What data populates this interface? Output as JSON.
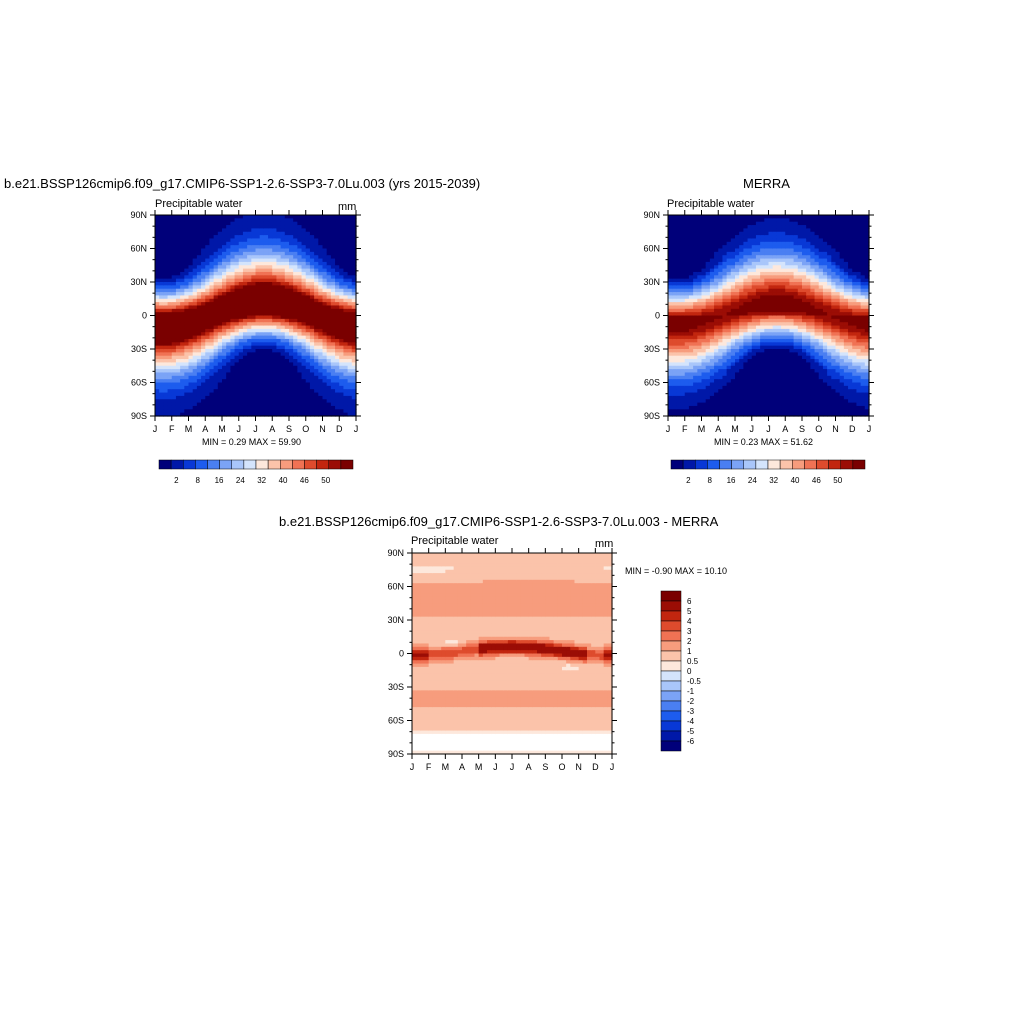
{
  "panels": [
    {
      "title": "b.e21.BSSP126cmip6.f09_g17.CMIP6-SSP1-2.6-SSP3-7.0Lu.003 (yrs 2015-2039)",
      "subtitle": "Precipitable water",
      "units": "mm",
      "stats": "MIN =   0.29 MAX =  59.90"
    },
    {
      "title": "MERRA",
      "subtitle": "Precipitable water",
      "units": "",
      "stats": "MIN =   0.23 MAX =  51.62"
    },
    {
      "title": "b.e21.BSSP126cmip6.f09_g17.CMIP6-SSP1-2.6-SSP3-7.0Lu.003 - MERRA",
      "subtitle": "Precipitable water",
      "units": "mm",
      "stats": "MIN =  -0.90 MAX =  10.10"
    }
  ],
  "chart_data": [
    {
      "type": "heatmap",
      "title": "b.e21.BSSP126cmip6.f09_g17.CMIP6-SSP1-2.6-SSP3-7.0Lu.003 (yrs 2015-2039)",
      "subtitle": "Precipitable water",
      "units": "mm",
      "x_ticks": [
        "J",
        "F",
        "M",
        "A",
        "M",
        "J",
        "J",
        "A",
        "S",
        "O",
        "N",
        "D",
        "J"
      ],
      "y_ticks": [
        "90N",
        "60N",
        "30N",
        "0",
        "30S",
        "60S",
        "90S"
      ],
      "lat_range": [
        -90,
        90
      ],
      "min": 0.29,
      "max": 59.9,
      "colorbar_labels": [
        "2",
        "8",
        "16",
        "24",
        "32",
        "40",
        "46",
        "50"
      ],
      "field": {
        "eq_max": 57,
        "pole_min": 1,
        "itcz_lat_jan": -6,
        "itcz_lat_jul": 9
      }
    },
    {
      "type": "heatmap",
      "title": "MERRA",
      "subtitle": "Precipitable water",
      "x_ticks": [
        "J",
        "F",
        "M",
        "A",
        "M",
        "J",
        "J",
        "A",
        "S",
        "O",
        "N",
        "D",
        "J"
      ],
      "y_ticks": [
        "90N",
        "60N",
        "30N",
        "0",
        "30S",
        "60S",
        "90S"
      ],
      "lat_range": [
        -90,
        90
      ],
      "min": 0.23,
      "max": 51.62,
      "colorbar_labels": [
        "2",
        "8",
        "16",
        "24",
        "32",
        "40",
        "46",
        "50"
      ],
      "field": {
        "eq_max": 50,
        "pole_min": 0.5,
        "itcz_lat_jan": -5,
        "itcz_lat_jul": 8
      }
    },
    {
      "type": "heatmap",
      "title": "b.e21.BSSP126cmip6.f09_g17.CMIP6-SSP1-2.6-SSP3-7.0Lu.003 - MERRA",
      "subtitle": "Precipitable water",
      "units": "mm",
      "x_ticks": [
        "J",
        "F",
        "M",
        "A",
        "M",
        "J",
        "J",
        "A",
        "S",
        "O",
        "N",
        "D",
        "J"
      ],
      "y_ticks": [
        "90N",
        "60N",
        "30N",
        "0",
        "30S",
        "60S",
        "90S"
      ],
      "lat_range": [
        -90,
        90
      ],
      "min": -0.9,
      "max": 10.1,
      "colorbar_labels": [
        "6",
        "5",
        "4",
        "3",
        "2",
        "1",
        "0.5",
        "0",
        "-0.5",
        "-1",
        "-2",
        "-3",
        "-4",
        "-5",
        "-6"
      ]
    }
  ],
  "colors": {
    "abs_levels": [
      "#00007a",
      "#0018a8",
      "#0838d6",
      "#1d5cee",
      "#4a7ff2",
      "#7ba3f6",
      "#a9c6fa",
      "#d4e4fc",
      "#fde8dc",
      "#fbc3aa",
      "#f79c7d",
      "#f07254",
      "#de4b2d",
      "#c2260f",
      "#9b0d05",
      "#7a0000"
    ],
    "diff_levels": [
      "#00007a",
      "#0018a8",
      "#0838d6",
      "#1d5cee",
      "#4a7ff2",
      "#7ba3f6",
      "#a9c6fa",
      "#d4e4fc",
      "#ffffff",
      "#fde8dc",
      "#fbc3aa",
      "#f79c7d",
      "#f07254",
      "#de4b2d",
      "#c2260f",
      "#9b0d05",
      "#7a0000"
    ]
  }
}
